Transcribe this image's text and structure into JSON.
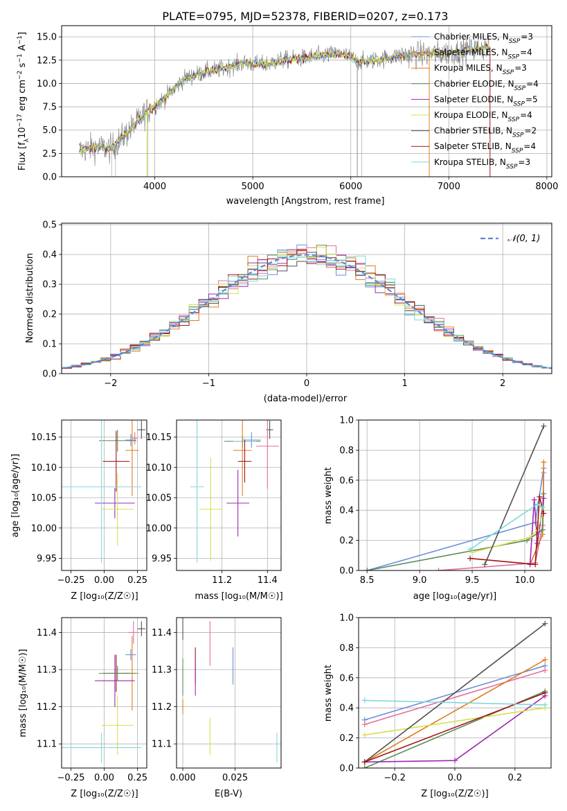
{
  "figure": {
    "title": "PLATE=0795, MJD=52378, FIBERID=0207, z=0.173"
  },
  "colors": {
    "Chabrier MILES": "#6b8ed9",
    "Salpeter MILES": "#e26f9c",
    "Kroupa MILES": "#e07b1f",
    "Chabrier ELODIE": "#5b8c5a",
    "Salpeter ELODIE": "#9b2aad",
    "Kroupa ELODIE": "#d6e04c",
    "Chabrier STELIB": "#505050",
    "Salpeter STELIB": "#a11414",
    "Kroupa STELIB": "#7fd8dc",
    "data": "#777777"
  },
  "chart_data": [
    {
      "type": "line",
      "id": "spectrum",
      "title": "PLATE=0795, MJD=52378, FIBERID=0207, z=0.173",
      "xlabel": "wavelength [Angstrom, rest frame]",
      "ylabel": "Flux [f_λ 10^-17 erg cm^-2 s^-1 A^-1]",
      "xlim": [
        3050,
        8050
      ],
      "ylim": [
        0,
        16.2
      ],
      "xticks": [
        4000,
        5000,
        6000,
        7000,
        8000
      ],
      "yticks": [
        0.0,
        2.5,
        5.0,
        7.5,
        10.0,
        12.5,
        15.0
      ],
      "legend_placement": "right",
      "legend": [
        "Chabrier MILES, N_SSP=3",
        "Salpeter MILES, N_SSP=4",
        "Kroupa MILES, N_SSP=3",
        "Chabrier ELODIE, N_SSP=4",
        "Salpeter ELODIE, N_SSP=5",
        "Kroupa ELODIE, N_SSP=4",
        "Chabrier STELIB, N_SSP=2",
        "Salpeter STELIB, N_SSP=4",
        "Kroupa STELIB, N_SSP=3"
      ],
      "continuum": {
        "x": [
          3230,
          3400,
          3550,
          3650,
          3800,
          3900,
          4000,
          4100,
          4300,
          4500,
          4700,
          4900,
          5100,
          5300,
          5500,
          5700,
          5900,
          6100,
          6300,
          6500,
          6700,
          6900,
          7100,
          7300,
          7420
        ],
        "y": [
          2.8,
          3.2,
          3.0,
          4.0,
          5.6,
          6.8,
          7.6,
          8.4,
          10.5,
          11.2,
          11.6,
          12.2,
          12.0,
          12.5,
          12.7,
          13.0,
          13.2,
          12.3,
          12.6,
          13.0,
          13.1,
          13.2,
          13.4,
          13.7,
          13.9
        ]
      }
    },
    {
      "type": "line",
      "id": "residuals",
      "xlabel": "(data-model)/error",
      "ylabel": "Normed distribution",
      "xlim": [
        -2.5,
        2.5
      ],
      "ylim": [
        0,
        0.505
      ],
      "xticks": [
        -2,
        -1,
        0,
        1,
        2
      ],
      "yticks": [
        0.0,
        0.1,
        0.2,
        0.3,
        0.4,
        0.5
      ],
      "legend": [
        "𝒩(0, 1)"
      ],
      "legend_placement": "top-right",
      "bin_width": 0.1
    },
    {
      "type": "scatter",
      "id": "age-vs-Z",
      "xlabel": "Z [log10(Z/Z⊙)]",
      "ylabel": "age  [log10(age/yr)]",
      "xlim": [
        -0.32,
        0.32
      ],
      "ylim": [
        9.93,
        10.178
      ],
      "xticks": [
        -0.25,
        0.0,
        0.25
      ],
      "xticklabels": [
        "−0.25",
        "0.00",
        "0.25"
      ],
      "yticks": [
        9.95,
        10.0,
        10.05,
        10.1,
        10.15
      ],
      "points": [
        {
          "model": "Chabrier STELIB",
          "x": 0.28,
          "y": 10.162,
          "xerr": 0.03,
          "yerr": 0.015
        },
        {
          "model": "Salpeter MILES",
          "x": 0.23,
          "y": 10.148,
          "xerr": 0.02,
          "yerr": 0.01
        },
        {
          "model": "Chabrier MILES",
          "x": 0.2,
          "y": 10.145,
          "xerr": 0.04,
          "yerr": 0.01
        },
        {
          "model": "Chabrier ELODIE",
          "x": 0.1,
          "y": 10.144,
          "xerr": 0.14,
          "yerr": 0.018
        },
        {
          "model": "Kroupa MILES",
          "x": 0.21,
          "y": 10.128,
          "xerr": 0.05,
          "yerr": 0.075
        },
        {
          "model": "Salpeter STELIB",
          "x": 0.09,
          "y": 10.11,
          "xerr": 0.1,
          "yerr": 0.05
        },
        {
          "model": "Salpeter ELODIE",
          "x": 0.08,
          "y": 10.041,
          "xerr": 0.15,
          "yerr": 0.025
        },
        {
          "model": "Kroupa ELODIE",
          "x": 0.1,
          "y": 10.031,
          "xerr": 0.12,
          "yerr": 0.06
        },
        {
          "model": "Kroupa STELIB",
          "x": -0.02,
          "y": 10.068,
          "xerr": 0.3,
          "yerr": 0.125
        }
      ]
    },
    {
      "type": "scatter",
      "id": "age-vs-mass",
      "xlabel": "mass [log10(M/M⊙)]",
      "xlim": [
        11.0,
        11.46
      ],
      "ylim": [
        9.93,
        10.178
      ],
      "xticks": [
        11.2,
        11.4
      ],
      "yticks": [
        9.95,
        10.0,
        10.05,
        10.1,
        10.15
      ],
      "points": [
        {
          "model": "Chabrier STELIB",
          "x": 11.41,
          "y": 10.162,
          "xerr": 0.015,
          "yerr": 0.015
        },
        {
          "model": "Salpeter MILES",
          "x": 11.4,
          "y": 10.135,
          "xerr": 0.05,
          "yerr": 0.07
        },
        {
          "model": "Chabrier MILES",
          "x": 11.33,
          "y": 10.145,
          "xerr": 0.04,
          "yerr": 0.013
        },
        {
          "model": "Chabrier ELODIE",
          "x": 11.29,
          "y": 10.143,
          "xerr": 0.08,
          "yerr": 0.01
        },
        {
          "model": "Kroupa STELIB",
          "x": 11.3,
          "y": 10.143,
          "xerr": 0.05,
          "yerr": 0.005
        },
        {
          "model": "Kroupa MILES",
          "x": 11.29,
          "y": 10.128,
          "xerr": 0.04,
          "yerr": 0.075
        },
        {
          "model": "Salpeter STELIB",
          "x": 11.3,
          "y": 10.11,
          "xerr": 0.03,
          "yerr": 0.035
        },
        {
          "model": "Salpeter ELODIE",
          "x": 11.27,
          "y": 10.041,
          "xerr": 0.05,
          "yerr": 0.055
        },
        {
          "model": "Kroupa ELODIE",
          "x": 11.15,
          "y": 10.031,
          "xerr": 0.05,
          "yerr": 0.085
        },
        {
          "model": "Kroupa STELIB (alt)",
          "x": 11.09,
          "y": 10.068,
          "xerr": 0.03,
          "yerr": 0.125
        }
      ]
    },
    {
      "type": "line",
      "id": "mass-weight-vs-age",
      "xlabel": "age  [log10(age/yr)]",
      "ylabel": "mass weight",
      "xlim": [
        8.42,
        10.25
      ],
      "ylim": [
        0,
        1.0
      ],
      "xticks": [
        8.5,
        9.0,
        9.5,
        10.0
      ],
      "yticks": [
        0.0,
        0.2,
        0.4,
        0.6,
        0.8,
        1.0
      ],
      "series": [
        {
          "model": "Chabrier MILES",
          "x": [
            8.5,
            10.1,
            10.18
          ],
          "y": [
            0.0,
            0.32,
            0.68
          ]
        },
        {
          "model": "Salpeter MILES",
          "x": [
            9.18,
            10.1,
            10.17,
            10.18
          ],
          "y": [
            0.0,
            0.05,
            0.3,
            0.65
          ]
        },
        {
          "model": "Kroupa MILES",
          "x": [
            10.05,
            10.17,
            10.18
          ],
          "y": [
            0.04,
            0.24,
            0.72
          ]
        },
        {
          "model": "Chabrier ELODIE",
          "x": [
            8.5,
            10.02,
            10.17,
            10.18
          ],
          "y": [
            0.0,
            0.2,
            0.27,
            0.51
          ]
        },
        {
          "model": "Salpeter ELODIE",
          "x": [
            10.05,
            10.09,
            10.12,
            10.18
          ],
          "y": [
            0.04,
            0.47,
            0.18,
            0.48
          ]
        },
        {
          "model": "Kroupa ELODIE",
          "x": [
            9.5,
            10.05,
            10.12,
            10.18
          ],
          "y": [
            0.12,
            0.22,
            0.27,
            0.4
          ]
        },
        {
          "model": "Chabrier STELIB",
          "x": [
            9.62,
            10.18
          ],
          "y": [
            0.04,
            0.96
          ]
        },
        {
          "model": "Salpeter STELIB",
          "x": [
            9.48,
            10.1,
            10.14,
            10.18
          ],
          "y": [
            0.08,
            0.04,
            0.49,
            0.38
          ]
        },
        {
          "model": "Kroupa STELIB",
          "x": [
            9.48,
            10.12,
            10.17
          ],
          "y": [
            0.14,
            0.44,
            0.42
          ]
        }
      ]
    },
    {
      "type": "scatter",
      "id": "mass-vs-Z",
      "xlabel": "Z [log10(Z/Z⊙)]",
      "ylabel": "mass [log10(M/M⊙)]",
      "xlim": [
        -0.32,
        0.32
      ],
      "ylim": [
        11.035,
        11.44
      ],
      "xticks": [
        -0.25,
        0.0,
        0.25
      ],
      "xticklabels": [
        "−0.25",
        "0.00",
        "0.25"
      ],
      "yticks": [
        11.1,
        11.2,
        11.3,
        11.4
      ],
      "points": [
        {
          "model": "Chabrier STELIB",
          "x": 0.28,
          "y": 11.41,
          "xerr": 0.03,
          "yerr": 0.02
        },
        {
          "model": "Salpeter MILES",
          "x": 0.22,
          "y": 11.4,
          "xerr": 0.04,
          "yerr": 0.03
        },
        {
          "model": "Chabrier MILES",
          "x": 0.2,
          "y": 11.34,
          "xerr": 0.04,
          "yerr": 0.015
        },
        {
          "model": "Kroupa MILES",
          "x": 0.21,
          "y": 11.29,
          "xerr": 0.05,
          "yerr": 0.1
        },
        {
          "model": "Salpeter STELIB",
          "x": 0.09,
          "y": 11.29,
          "xerr": 0.1,
          "yerr": 0.05
        },
        {
          "model": "Chabrier ELODIE",
          "x": 0.1,
          "y": 11.29,
          "xerr": 0.14,
          "yerr": 0.02
        },
        {
          "model": "Salpeter ELODIE",
          "x": 0.08,
          "y": 11.27,
          "xerr": 0.15,
          "yerr": 0.07
        },
        {
          "model": "Kroupa ELODIE",
          "x": 0.1,
          "y": 11.15,
          "xerr": 0.12,
          "yerr": 0.08
        },
        {
          "model": "Kroupa STELIB",
          "x": -0.02,
          "y": 11.09,
          "xerr": 0.3,
          "yerr": 0.04
        }
      ]
    },
    {
      "type": "scatter",
      "id": "mass-vs-EBV",
      "xlabel": "E(B-V)",
      "xlim": [
        -0.003,
        0.047
      ],
      "ylim": [
        11.035,
        11.44
      ],
      "xticks": [
        0.0,
        0.025
      ],
      "xticklabels": [
        "0.000",
        "0.025"
      ],
      "yticks": [
        11.1,
        11.2,
        11.3,
        11.4
      ],
      "points": [
        {
          "model": "Chabrier STELIB",
          "x": 0.0,
          "y": 11.41,
          "yerr": 0.03
        },
        {
          "model": "Chabrier ELODIE",
          "x": 0.0,
          "y": 11.28,
          "yerr": 0.05
        },
        {
          "model": "Kroupa MILES",
          "x": 0.0,
          "y": 11.2,
          "yerr": 0.02
        },
        {
          "model": "Salpeter STELIB",
          "x": 0.006,
          "y": 11.31,
          "yerr": 0.05
        },
        {
          "model": "Salpeter ELODIE",
          "x": 0.006,
          "y": 11.28,
          "yerr": 0.05
        },
        {
          "model": "Salpeter MILES",
          "x": 0.013,
          "y": 11.37,
          "yerr": 0.06
        },
        {
          "model": "Kroupa ELODIE",
          "x": 0.013,
          "y": 11.12,
          "yerr": 0.05
        },
        {
          "model": "Chabrier MILES",
          "x": 0.024,
          "y": 11.31,
          "yerr": 0.05
        },
        {
          "model": "Kroupa STELIB",
          "x": 0.045,
          "y": 11.09,
          "yerr": 0.04
        }
      ]
    },
    {
      "type": "line",
      "id": "mass-weight-vs-Z",
      "xlabel": "Z [log10(Z/Z⊙)]",
      "ylabel": "mass weight",
      "xlim": [
        -0.32,
        0.32
      ],
      "ylim": [
        0,
        1.0
      ],
      "xticks": [
        -0.2,
        0.0,
        0.2
      ],
      "xticklabels": [
        "−0.2",
        "0.0",
        "0.2"
      ],
      "yticks": [
        0.0,
        0.2,
        0.4,
        0.6,
        0.8,
        1.0
      ],
      "series": [
        {
          "model": "Chabrier MILES",
          "x": [
            -0.3,
            0.3
          ],
          "y": [
            0.32,
            0.68
          ]
        },
        {
          "model": "Salpeter MILES",
          "x": [
            -0.3,
            0.3
          ],
          "y": [
            0.29,
            0.65
          ]
        },
        {
          "model": "Kroupa MILES",
          "x": [
            -0.3,
            0.3
          ],
          "y": [
            0.04,
            0.72
          ]
        },
        {
          "model": "Chabrier ELODIE",
          "x": [
            -0.3,
            0.3
          ],
          "y": [
            0.0,
            0.51
          ]
        },
        {
          "model": "Salpeter ELODIE",
          "x": [
            -0.3,
            0.0,
            0.3
          ],
          "y": [
            0.04,
            0.05,
            0.48
          ]
        },
        {
          "model": "Kroupa ELODIE",
          "x": [
            -0.3,
            0.3
          ],
          "y": [
            0.22,
            0.4
          ]
        },
        {
          "model": "Chabrier STELIB",
          "x": [
            -0.3,
            0.3
          ],
          "y": [
            0.04,
            0.96
          ]
        },
        {
          "model": "Salpeter STELIB",
          "x": [
            -0.3,
            0.3
          ],
          "y": [
            0.04,
            0.5
          ]
        },
        {
          "model": "Kroupa STELIB",
          "x": [
            -0.3,
            0.3
          ],
          "y": [
            0.45,
            0.42
          ]
        }
      ]
    }
  ]
}
